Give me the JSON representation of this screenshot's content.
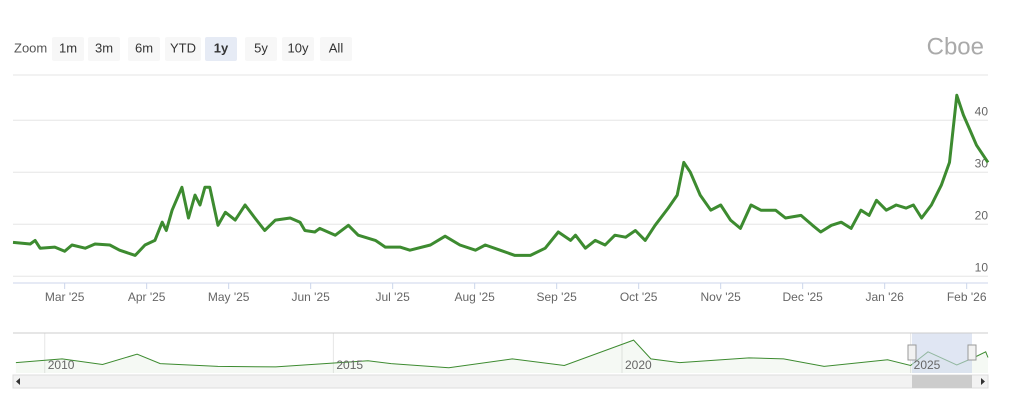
{
  "zoom": {
    "label": "Zoom",
    "buttons": [
      "1m",
      "3m",
      "6m",
      "YTD",
      "1y",
      "5y",
      "10y",
      "All"
    ],
    "selected": 4
  },
  "logo": "Cboe",
  "chart_data": [
    {
      "type": "line",
      "color": "#3d8b30",
      "x": [
        2.37,
        2.58,
        2.64,
        2.7,
        2.88,
        3.0,
        3.09,
        3.25,
        3.37,
        3.55,
        3.67,
        3.86,
        3.98,
        4.1,
        4.19,
        4.24,
        4.31,
        4.43,
        4.51,
        4.59,
        4.65,
        4.71,
        4.77,
        4.87,
        4.96,
        5.08,
        5.2,
        5.32,
        5.44,
        5.57,
        5.75,
        5.87,
        5.93,
        6.05,
        6.11,
        6.3,
        6.46,
        6.58,
        6.79,
        6.91,
        7.09,
        7.21,
        7.46,
        7.64,
        7.82,
        8.01,
        8.13,
        8.31,
        8.49,
        8.68,
        8.86,
        9.02,
        9.17,
        9.23,
        9.35,
        9.47,
        9.59,
        9.71,
        9.84,
        9.96,
        10.08,
        10.2,
        10.36,
        10.47,
        10.55,
        10.63,
        10.75,
        10.88,
        11.0,
        11.12,
        11.24,
        11.37,
        11.49,
        11.67,
        11.79,
        11.98,
        12.12,
        12.22,
        12.35,
        12.47,
        12.59,
        12.71,
        12.81,
        12.9,
        13.02,
        13.14,
        13.26,
        13.35,
        13.45,
        13.57,
        13.69,
        13.79,
        13.88,
        13.96,
        14.04,
        14.12,
        14.26
      ],
      "values": [
        16.5,
        16.2,
        16.9,
        15.4,
        15.6,
        14.8,
        16.0,
        15.4,
        16.2,
        16.0,
        15.0,
        14.0,
        16.0,
        16.9,
        20.4,
        18.8,
        22.7,
        27.1,
        21.2,
        25.6,
        23.7,
        27.1,
        27.1,
        19.8,
        22.3,
        20.8,
        23.7,
        21.2,
        18.8,
        20.8,
        21.2,
        20.4,
        18.8,
        18.5,
        19.2,
        17.9,
        19.8,
        17.9,
        16.9,
        15.6,
        15.6,
        15.0,
        16.0,
        17.7,
        16.0,
        15.0,
        16.0,
        15.0,
        14.0,
        14.0,
        15.4,
        18.5,
        16.9,
        17.9,
        15.4,
        16.9,
        16.0,
        17.9,
        17.5,
        18.8,
        16.9,
        19.8,
        23.1,
        25.6,
        31.9,
        30.0,
        25.6,
        22.7,
        23.7,
        20.8,
        19.2,
        23.7,
        22.7,
        22.7,
        21.2,
        21.7,
        19.8,
        18.5,
        19.8,
        20.4,
        19.2,
        22.7,
        21.7,
        24.6,
        22.7,
        23.7,
        23.1,
        23.7,
        21.2,
        23.7,
        27.5,
        31.9,
        44.8,
        41.0,
        38.1,
        35.2,
        31.9
      ],
      "xlim": [
        2.37,
        14.26
      ],
      "xticks": [
        {
          "value": 3,
          "label": "Mar '25"
        },
        {
          "value": 4,
          "label": "Apr '25"
        },
        {
          "value": 5,
          "label": "May '25"
        },
        {
          "value": 6,
          "label": "Jun '25"
        },
        {
          "value": 7,
          "label": "Jul '25"
        },
        {
          "value": 8,
          "label": "Aug '25"
        },
        {
          "value": 9,
          "label": "Sep '25"
        },
        {
          "value": 10,
          "label": "Oct '25"
        },
        {
          "value": 11,
          "label": "Nov '25"
        },
        {
          "value": 12,
          "label": "Dec '25"
        },
        {
          "value": 13,
          "label": "Jan '26"
        },
        {
          "value": 14,
          "label": "Feb '26"
        }
      ],
      "ylim": [
        8.7,
        48.7
      ],
      "yticks": [
        10,
        20,
        30,
        40
      ],
      "grid": true
    },
    {
      "type": "area",
      "color": "#3d8b30",
      "x": [
        2009.5,
        2010.3,
        2011.0,
        2011.6,
        2012.0,
        2013.0,
        2014.0,
        2015.6,
        2016.0,
        2017.0,
        2018.1,
        2019.0,
        2020.2,
        2020.5,
        2021.0,
        2022.2,
        2022.8,
        2023.5,
        2024.6,
        2025.0,
        2025.3,
        2025.8,
        2026.1,
        2026.3,
        2026.34
      ],
      "values": [
        22,
        30,
        18,
        40,
        20,
        14,
        13,
        26,
        20,
        11,
        30,
        16,
        70,
        30,
        22,
        32,
        30,
        14,
        28,
        16,
        45,
        17,
        33,
        45,
        33
      ],
      "xlim": [
        2009.45,
        2026.34
      ],
      "xticks": [
        2010,
        2015,
        2020,
        2025
      ],
      "ylim": [
        0,
        85
      ]
    }
  ]
}
